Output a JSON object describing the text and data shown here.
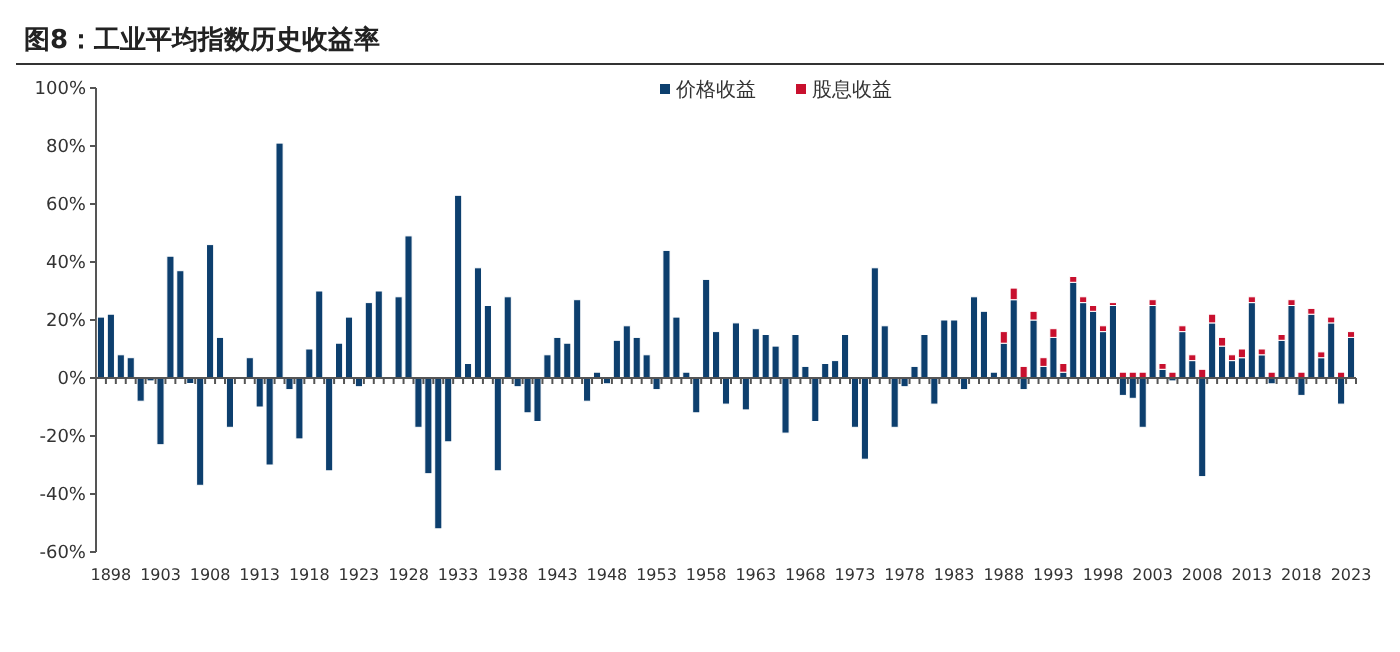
{
  "chart_data": {
    "type": "bar",
    "title": "图8：工业平均指数历史收益率",
    "stacked": true,
    "legend": "top",
    "x": [
      1897,
      1898,
      1899,
      1900,
      1901,
      1902,
      1903,
      1904,
      1905,
      1906,
      1907,
      1908,
      1909,
      1910,
      1911,
      1912,
      1913,
      1914,
      1915,
      1916,
      1917,
      1918,
      1919,
      1920,
      1921,
      1922,
      1923,
      1924,
      1925,
      1926,
      1927,
      1928,
      1929,
      1930,
      1931,
      1932,
      1933,
      1934,
      1935,
      1936,
      1937,
      1938,
      1939,
      1940,
      1941,
      1942,
      1943,
      1944,
      1945,
      1946,
      1947,
      1948,
      1949,
      1950,
      1951,
      1952,
      1953,
      1954,
      1955,
      1956,
      1957,
      1958,
      1959,
      1960,
      1961,
      1962,
      1963,
      1964,
      1965,
      1966,
      1967,
      1968,
      1969,
      1970,
      1971,
      1972,
      1973,
      1974,
      1975,
      1976,
      1977,
      1978,
      1979,
      1980,
      1981,
      1982,
      1983,
      1984,
      1985,
      1986,
      1987,
      1988,
      1989,
      1990,
      1991,
      1992,
      1993,
      1994,
      1995,
      1996,
      1997,
      1998,
      1999,
      2000,
      2001,
      2002,
      2003,
      2004,
      2005,
      2006,
      2007,
      2008,
      2009,
      2010,
      2011,
      2012,
      2013,
      2014,
      2015,
      2016,
      2017,
      2018,
      2019,
      2020,
      2021,
      2022,
      2023
    ],
    "xlim": [
      1896.5,
      2023.5
    ],
    "xticks": [
      1898,
      1903,
      1908,
      1913,
      1918,
      1923,
      1928,
      1933,
      1938,
      1943,
      1948,
      1953,
      1958,
      1963,
      1968,
      1973,
      1978,
      1983,
      1988,
      1993,
      1998,
      2003,
      2008,
      2013,
      2018,
      2023
    ],
    "ylim": [
      -60,
      100
    ],
    "yticks": [
      {
        "value": -60,
        "label": "-60%"
      },
      {
        "value": -40,
        "label": "-40%"
      },
      {
        "value": -20,
        "label": "-20%"
      },
      {
        "value": 0,
        "label": "0%"
      },
      {
        "value": 20,
        "label": "20%"
      },
      {
        "value": 40,
        "label": "40%"
      },
      {
        "value": 60,
        "label": "60%"
      },
      {
        "value": 80,
        "label": "80%"
      },
      {
        "value": 100,
        "label": "100%"
      }
    ],
    "series": [
      {
        "name": "价格收益",
        "color": "#0d3f6e",
        "values": [
          21,
          22,
          8,
          7,
          -8,
          -1,
          -23,
          42,
          37,
          -1.9,
          -37,
          46,
          14,
          -17,
          null,
          7,
          -10,
          -30,
          81,
          -4,
          -21,
          10,
          30,
          -32,
          12,
          21,
          -3,
          26,
          30,
          0.3,
          28,
          49,
          -17,
          -33,
          -52,
          -22,
          63,
          5,
          38,
          25,
          -32,
          28,
          -3,
          -12,
          -15,
          8,
          14,
          12,
          27,
          -8,
          2,
          -2,
          13,
          18,
          14,
          8,
          -4,
          44,
          21,
          2,
          -12,
          34,
          16,
          -9,
          19,
          -11,
          17,
          15,
          11,
          -19,
          15,
          4,
          -15,
          5,
          6,
          15,
          -17,
          -28,
          38,
          18,
          -17,
          -3,
          4,
          15,
          -9,
          20,
          20,
          -4,
          28,
          23,
          2,
          12,
          27,
          -4,
          20,
          4,
          14,
          2,
          33,
          26,
          23,
          16,
          25,
          -6,
          -7,
          -17,
          25,
          3,
          -1,
          16,
          6,
          -34,
          19,
          11,
          6,
          7,
          26,
          8,
          -2,
          13,
          25,
          -6,
          22,
          7,
          19,
          -9,
          14
        ]
      },
      {
        "name": "股息收益",
        "color": "#c8102e",
        "values": [
          null,
          null,
          null,
          null,
          null,
          null,
          null,
          null,
          null,
          null,
          null,
          null,
          null,
          null,
          null,
          null,
          null,
          null,
          null,
          null,
          null,
          null,
          null,
          null,
          null,
          null,
          null,
          null,
          null,
          null,
          null,
          null,
          null,
          null,
          null,
          null,
          null,
          null,
          null,
          null,
          null,
          null,
          null,
          null,
          null,
          null,
          null,
          null,
          null,
          null,
          null,
          null,
          null,
          null,
          null,
          null,
          null,
          null,
          null,
          null,
          null,
          null,
          null,
          null,
          null,
          null,
          null,
          null,
          null,
          null,
          null,
          null,
          null,
          null,
          null,
          null,
          null,
          null,
          null,
          null,
          null,
          null,
          null,
          null,
          null,
          null,
          null,
          null,
          null,
          null,
          null,
          4,
          4,
          4,
          3,
          3,
          3,
          3,
          2,
          2,
          2,
          2,
          1,
          2,
          2,
          2,
          2,
          2,
          2,
          2,
          2,
          3,
          3,
          3,
          2,
          3,
          2,
          2,
          2,
          2,
          2,
          2,
          2,
          2,
          2,
          2,
          2
        ]
      }
    ]
  }
}
